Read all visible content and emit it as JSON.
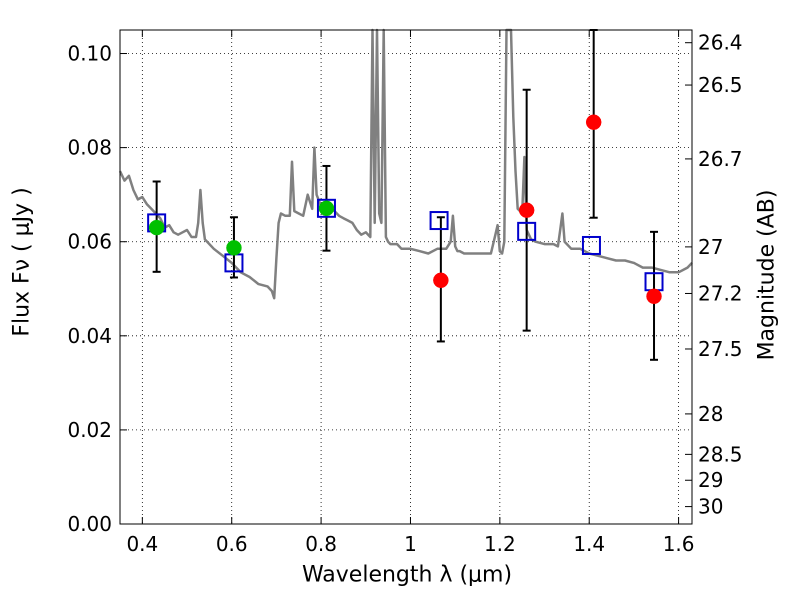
{
  "chart_data": {
    "type": "scatter",
    "xlabel": "Wavelength  λ (μm)",
    "ylabel": "Flux  Fν  ( μJy )",
    "ylabel_right": "Magnitude (AB)",
    "xlim": [
      0.35,
      1.63
    ],
    "ylim": [
      0.0,
      0.105
    ],
    "grid": true,
    "x_ticks": [
      0.4,
      0.6,
      0.8,
      1.0,
      1.2,
      1.4,
      1.6
    ],
    "x_tick_labels": [
      "0.4",
      "0.6",
      "0.8",
      "1",
      "1.2",
      "1.4",
      "1.6"
    ],
    "y_ticks": [
      0.0,
      0.02,
      0.04,
      0.06,
      0.08,
      0.1
    ],
    "y_tick_labels": [
      "0.00",
      "0.02",
      "0.04",
      "0.06",
      "0.08",
      "0.10"
    ],
    "right_ticks": [
      {
        "label": "26.4",
        "flux": 0.1023
      },
      {
        "label": "26.5",
        "flux": 0.0933
      },
      {
        "label": "26.7",
        "flux": 0.0776
      },
      {
        "label": "27",
        "flux": 0.0589
      },
      {
        "label": "27.2",
        "flux": 0.049
      },
      {
        "label": "27.5",
        "flux": 0.0372
      },
      {
        "label": "28",
        "flux": 0.0234
      },
      {
        "label": "28.5",
        "flux": 0.0148
      },
      {
        "label": "29",
        "flux": 0.0093
      },
      {
        "label": "30",
        "flux": 0.0037
      }
    ],
    "series": [
      {
        "kind": "line",
        "color": "#808080",
        "x": [
          0.35,
          0.36,
          0.37,
          0.38,
          0.39,
          0.4,
          0.41,
          0.42,
          0.43,
          0.44,
          0.45,
          0.46,
          0.47,
          0.48,
          0.49,
          0.5,
          0.51,
          0.52,
          0.525,
          0.53,
          0.535,
          0.54,
          0.56,
          0.58,
          0.6,
          0.62,
          0.64,
          0.66,
          0.68,
          0.69,
          0.695,
          0.7,
          0.705,
          0.71,
          0.72,
          0.73,
          0.735,
          0.74,
          0.75,
          0.76,
          0.77,
          0.78,
          0.785,
          0.79,
          0.8,
          0.81,
          0.82,
          0.83,
          0.84,
          0.85,
          0.86,
          0.87,
          0.88,
          0.89,
          0.9,
          0.91,
          0.915,
          0.92,
          0.925,
          0.93,
          0.935,
          0.94,
          0.945,
          0.95,
          0.955,
          0.96,
          0.97,
          0.98,
          1.0,
          1.02,
          1.04,
          1.06,
          1.08,
          1.09,
          1.095,
          1.1,
          1.105,
          1.11,
          1.12,
          1.14,
          1.16,
          1.18,
          1.19,
          1.195,
          1.2,
          1.205,
          1.21,
          1.215,
          1.22,
          1.225,
          1.23,
          1.235,
          1.24,
          1.245,
          1.25,
          1.255,
          1.26,
          1.265,
          1.27,
          1.28,
          1.3,
          1.32,
          1.33,
          1.335,
          1.34,
          1.345,
          1.35,
          1.36,
          1.38,
          1.4,
          1.42,
          1.44,
          1.46,
          1.48,
          1.5,
          1.52,
          1.54,
          1.56,
          1.58,
          1.6,
          1.62,
          1.63
        ],
        "y": [
          0.075,
          0.073,
          0.074,
          0.071,
          0.069,
          0.0695,
          0.068,
          0.067,
          0.066,
          0.065,
          0.063,
          0.0635,
          0.062,
          0.0615,
          0.062,
          0.0625,
          0.061,
          0.061,
          0.064,
          0.071,
          0.064,
          0.0605,
          0.0585,
          0.057,
          0.0555,
          0.0535,
          0.0525,
          0.051,
          0.0505,
          0.0495,
          0.048,
          0.0565,
          0.064,
          0.066,
          0.0655,
          0.0655,
          0.077,
          0.0665,
          0.066,
          0.0655,
          0.07,
          0.067,
          0.08,
          0.07,
          0.0675,
          0.0685,
          0.0675,
          0.0665,
          0.0655,
          0.065,
          0.0645,
          0.064,
          0.0625,
          0.0615,
          0.062,
          0.061,
          0.105,
          0.064,
          0.105,
          0.066,
          0.064,
          0.105,
          0.061,
          0.06,
          0.0595,
          0.0595,
          0.0595,
          0.0585,
          0.0585,
          0.058,
          0.0575,
          0.0585,
          0.0585,
          0.06,
          0.0655,
          0.059,
          0.058,
          0.058,
          0.0575,
          0.0575,
          0.0575,
          0.0575,
          0.0615,
          0.0635,
          0.058,
          0.0575,
          0.06,
          0.105,
          0.105,
          0.105,
          0.0865,
          0.075,
          0.067,
          0.0665,
          0.066,
          0.078,
          0.0625,
          0.0615,
          0.0605,
          0.06,
          0.0595,
          0.0595,
          0.059,
          0.0625,
          0.066,
          0.06,
          0.0595,
          0.0585,
          0.0585,
          0.0575,
          0.057,
          0.0565,
          0.056,
          0.056,
          0.0555,
          0.0545,
          0.0545,
          0.054,
          0.0535,
          0.0535,
          0.0545,
          0.0555
        ]
      },
      {
        "kind": "points",
        "marker": "circle",
        "color": "#00c000",
        "x": [
          0.432,
          0.605,
          0.812
        ],
        "y": [
          0.063,
          0.0587,
          0.0671
        ],
        "yerr_low": [
          0.0536,
          0.0524,
          0.0581
        ],
        "yerr_high": [
          0.0728,
          0.0652,
          0.0761
        ]
      },
      {
        "kind": "points",
        "marker": "circle",
        "color": "#ff0000",
        "x": [
          1.068,
          1.26,
          1.41,
          1.545
        ],
        "y": [
          0.0518,
          0.0667,
          0.0854,
          0.0484
        ],
        "yerr_low": [
          0.0388,
          0.0411,
          0.0651,
          0.0349
        ],
        "yerr_high": [
          0.0652,
          0.0923,
          0.105,
          0.0621
        ]
      },
      {
        "kind": "points",
        "marker": "square-open",
        "color": "#0000cc",
        "x": [
          0.432,
          0.605,
          0.812,
          1.064,
          1.26,
          1.405,
          1.545
        ],
        "y": [
          0.064,
          0.0555,
          0.0671,
          0.0645,
          0.0622,
          0.0592,
          0.0515
        ]
      }
    ]
  }
}
